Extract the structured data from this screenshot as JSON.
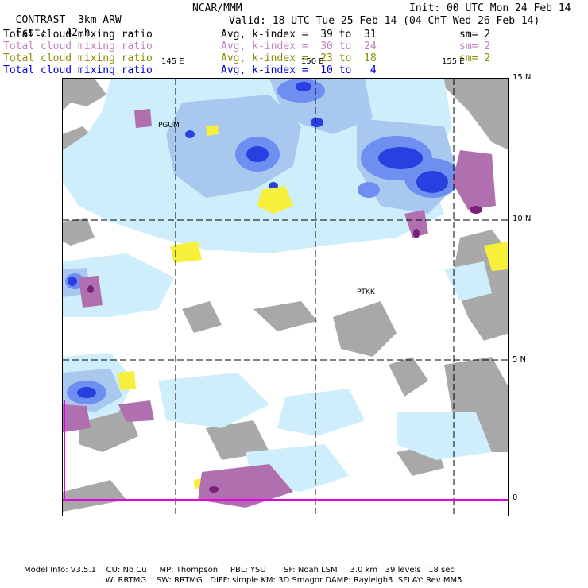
{
  "header": {
    "app": "CONTRAST",
    "model": "3km ARW",
    "center": "NCAR/MMM",
    "init": "Init: 00 UTC Mon 24 Feb 14",
    "fcst_label": "Fcst:",
    "fcst_value": "42 h",
    "valid": "Valid: 18 UTC Tue 25 Feb 14 (04 ChT Wed 26 Feb 14)"
  },
  "fields": [
    {
      "name": "Total cloud mixing ratio",
      "range": "Avg, k-index =  39 to  31",
      "sm": "sm= 2",
      "color": "#000000"
    },
    {
      "name": "Total cloud mixing ratio",
      "range": "Avg, k-index =  30 to  24",
      "sm": "sm= 2",
      "color": "#c080c0"
    },
    {
      "name": "Total cloud mixing ratio",
      "range": "Avg, k-index =  23 to  18",
      "sm": "sm= 2",
      "color": "#8c8c00"
    },
    {
      "name": "Total cloud mixing ratio",
      "range": "Avg, k-index =  10 to   4",
      "sm": "",
      "color": "#0000dd"
    }
  ],
  "map": {
    "lon_labels": [
      "145 E",
      "150 E",
      "155 E"
    ],
    "lat_labels": [
      "15 N",
      "10 N",
      "5 N",
      "0"
    ],
    "stations": [
      "PGUM",
      "PTKK"
    ]
  },
  "footer": {
    "line1": "Model Info: V3.5.1    CU: No Cu     MP: Thompson     PBL: YSU       SF: Noah LSM     3.0 km   39 levels   18 sec",
    "line2": "LW: RRTMG    SW: RRTMG   DIFF: simple KM: 3D Smagor DAMP: Rayleigh3  SFLAY: Rev MM5"
  },
  "colors": {
    "cloud_light": "#cdeefa",
    "cloud_pale_blue": "#a8c8f0",
    "cloud_mid_blue": "#6f8ff0",
    "cloud_blue": "#2a3fe0",
    "cloud_dark_blue": "#1010c0",
    "yellow": "#f7f03a",
    "purple": "#b070b0",
    "dark_purple": "#7a207a",
    "land_gray": "#9a9a9a",
    "magenta_line": "#e000e0"
  }
}
